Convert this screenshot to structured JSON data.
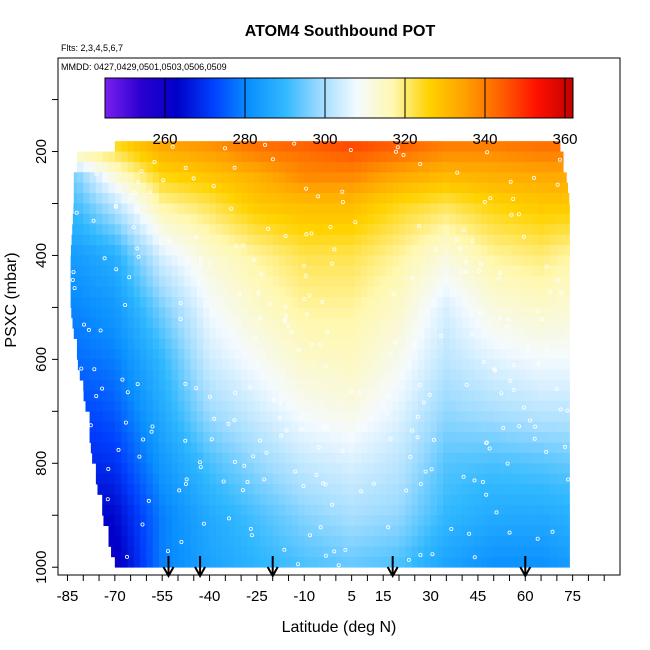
{
  "chart_data": {
    "type": "heatmap",
    "title": "ATOM4 Southbound POT",
    "subtitle_flights": "Flts: 2,3,4,5,6,7",
    "subtitle_dates": "MMDD: 0427,0429,0501,0503,0506,0509",
    "xlabel": "Latitude (deg N)",
    "ylabel": "PSXC (mbar)",
    "xlim": [
      -88,
      90
    ],
    "ylim": [
      1015,
      20
    ],
    "y_reversed": true,
    "x_ticks": [
      "-85",
      "-70",
      "-55",
      "-40",
      "-25",
      "-10",
      "5",
      "15",
      "30",
      "45",
      "60",
      "75"
    ],
    "y_ticks": [
      "200",
      "400",
      "600",
      "800",
      "1000"
    ],
    "colorbar": {
      "range": [
        245,
        362
      ],
      "ticks": [
        "260",
        "280",
        "300",
        "320",
        "340",
        "360"
      ],
      "colors": [
        "#7a1ff0",
        "#2a00d0",
        "#0000c8",
        "#0040ff",
        "#0a90ff",
        "#30b8ff",
        "#a0dcff",
        "#f4faff",
        "#fff8b0",
        "#ffd200",
        "#ffa000",
        "#ff6000",
        "#ff1000",
        "#c00000"
      ]
    },
    "coverage": [
      {
        "p": 180,
        "x0": -58,
        "x1": 70
      },
      {
        "p": 200,
        "x0": -82,
        "x1": 72
      },
      {
        "p": 250,
        "x0": -83,
        "x1": 73
      },
      {
        "p": 300,
        "x0": -83,
        "x1": 74
      },
      {
        "p": 400,
        "x0": -84,
        "x1": 74
      },
      {
        "p": 500,
        "x0": -84,
        "x1": 74
      },
      {
        "p": 600,
        "x0": -82,
        "x1": 74
      },
      {
        "p": 700,
        "x0": -79,
        "x1": 74
      },
      {
        "p": 800,
        "x0": -77,
        "x1": 74
      },
      {
        "p": 900,
        "x0": -74,
        "x1": 74
      },
      {
        "p": 1000,
        "x0": -70,
        "x1": 74
      }
    ],
    "potential_temperature_field": [
      {
        "p": 200,
        "points": [
          [
            -82,
            318
          ],
          [
            -70,
            322
          ],
          [
            -55,
            332
          ],
          [
            -40,
            335
          ],
          [
            -25,
            340
          ],
          [
            -10,
            342
          ],
          [
            5,
            345
          ],
          [
            20,
            342
          ],
          [
            35,
            338
          ],
          [
            50,
            338
          ],
          [
            65,
            340
          ],
          [
            72,
            340
          ]
        ]
      },
      {
        "p": 250,
        "points": [
          [
            -82,
            296
          ],
          [
            -70,
            312
          ],
          [
            -55,
            325
          ],
          [
            -40,
            328
          ],
          [
            -25,
            332
          ],
          [
            -10,
            338
          ],
          [
            5,
            338
          ],
          [
            20,
            333
          ],
          [
            35,
            330
          ],
          [
            50,
            332
          ],
          [
            65,
            333
          ],
          [
            72,
            333
          ]
        ]
      },
      {
        "p": 300,
        "points": [
          [
            -82,
            292
          ],
          [
            -70,
            302
          ],
          [
            -55,
            318
          ],
          [
            -40,
            322
          ],
          [
            -25,
            328
          ],
          [
            -10,
            330
          ],
          [
            5,
            330
          ],
          [
            20,
            325
          ],
          [
            35,
            322
          ],
          [
            50,
            326
          ],
          [
            65,
            328
          ],
          [
            72,
            328
          ]
        ]
      },
      {
        "p": 400,
        "points": [
          [
            -82,
            284
          ],
          [
            -70,
            288
          ],
          [
            -55,
            305
          ],
          [
            -40,
            313
          ],
          [
            -25,
            318
          ],
          [
            -10,
            322
          ],
          [
            5,
            322
          ],
          [
            20,
            318
          ],
          [
            35,
            312
          ],
          [
            50,
            318
          ],
          [
            65,
            320
          ],
          [
            72,
            318
          ]
        ]
      },
      {
        "p": 500,
        "points": [
          [
            -82,
            280
          ],
          [
            -70,
            283
          ],
          [
            -55,
            296
          ],
          [
            -40,
            308
          ],
          [
            -25,
            314
          ],
          [
            -10,
            318
          ],
          [
            5,
            318
          ],
          [
            20,
            314
          ],
          [
            35,
            305
          ],
          [
            50,
            312
          ],
          [
            65,
            314
          ],
          [
            72,
            313
          ]
        ]
      },
      {
        "p": 600,
        "points": [
          [
            -82,
            277
          ],
          [
            -70,
            279
          ],
          [
            -55,
            290
          ],
          [
            -40,
            304
          ],
          [
            -25,
            309
          ],
          [
            -10,
            314
          ],
          [
            5,
            315
          ],
          [
            20,
            310
          ],
          [
            35,
            302
          ],
          [
            50,
            306
          ],
          [
            65,
            308
          ],
          [
            72,
            308
          ]
        ]
      },
      {
        "p": 700,
        "points": [
          [
            -82,
            272
          ],
          [
            -70,
            275
          ],
          [
            -55,
            287
          ],
          [
            -40,
            299
          ],
          [
            -25,
            304
          ],
          [
            -10,
            309
          ],
          [
            5,
            311
          ],
          [
            20,
            306
          ],
          [
            35,
            298
          ],
          [
            50,
            300
          ],
          [
            65,
            302
          ],
          [
            72,
            302
          ]
        ]
      },
      {
        "p": 800,
        "points": [
          [
            -82,
            268
          ],
          [
            -70,
            270
          ],
          [
            -55,
            283
          ],
          [
            -40,
            292
          ],
          [
            -25,
            298
          ],
          [
            -10,
            303
          ],
          [
            5,
            305
          ],
          [
            20,
            302
          ],
          [
            35,
            293
          ],
          [
            50,
            292
          ],
          [
            65,
            293
          ],
          [
            72,
            294
          ]
        ]
      },
      {
        "p": 900,
        "points": [
          [
            -82,
            262
          ],
          [
            -70,
            264
          ],
          [
            -55,
            279
          ],
          [
            -40,
            287
          ],
          [
            -25,
            292
          ],
          [
            -10,
            297
          ],
          [
            5,
            300
          ],
          [
            20,
            298
          ],
          [
            35,
            290
          ],
          [
            50,
            287
          ],
          [
            65,
            287
          ],
          [
            72,
            288
          ]
        ]
      },
      {
        "p": 1000,
        "points": [
          [
            -82,
            257
          ],
          [
            -70,
            260
          ],
          [
            -55,
            279
          ],
          [
            -40,
            285
          ],
          [
            -25,
            289
          ],
          [
            -10,
            292
          ],
          [
            5,
            294
          ],
          [
            20,
            292
          ],
          [
            35,
            285
          ],
          [
            50,
            281
          ],
          [
            65,
            281
          ],
          [
            72,
            283
          ]
        ]
      }
    ],
    "arrow_latitudes": [
      -53,
      -43,
      -20,
      18,
      60
    ]
  }
}
